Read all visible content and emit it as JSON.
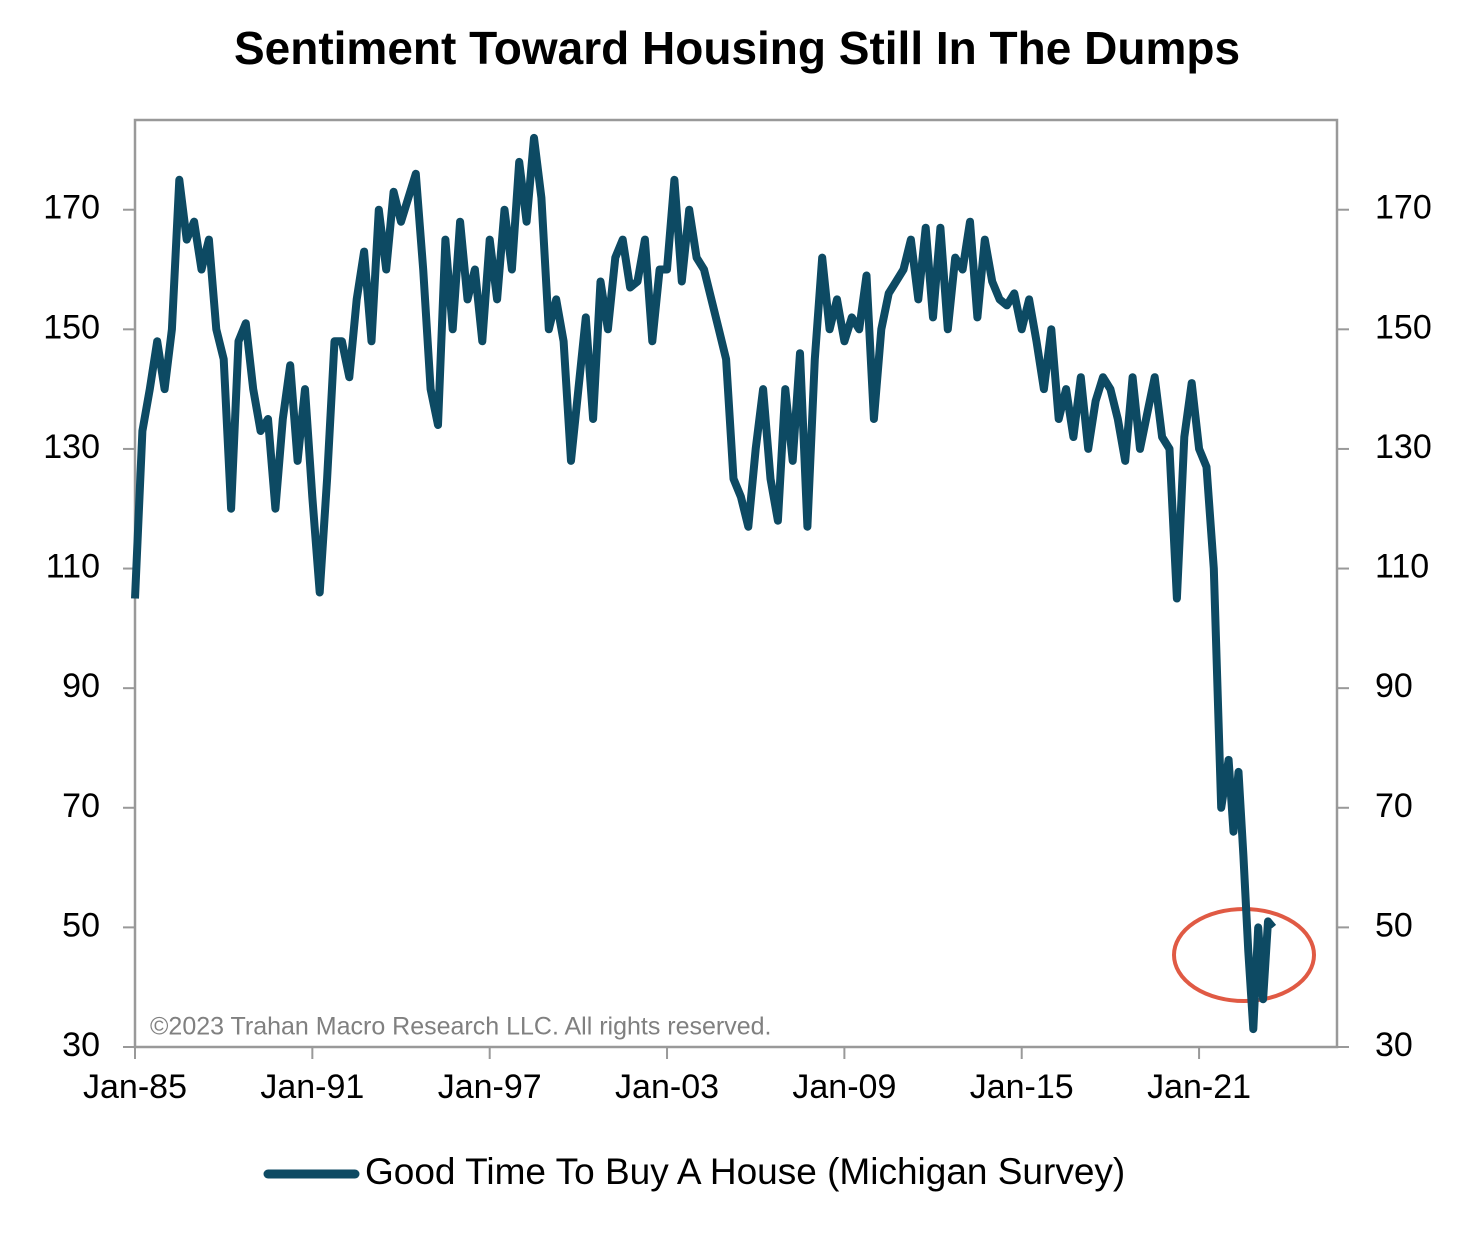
{
  "chart_data": {
    "type": "line",
    "title": "Sentiment Toward Housing Still In The Dumps",
    "annotation": "©2023 Trahan Macro Research LLC. All rights reserved.",
    "x": [
      "Jan-85",
      "Apr-85",
      "Jul-85",
      "Oct-85",
      "Jan-86",
      "Apr-86",
      "Jul-86",
      "Oct-86",
      "Jan-87",
      "Apr-87",
      "Jul-87",
      "Oct-87",
      "Jan-88",
      "Apr-88",
      "Jul-88",
      "Oct-88",
      "Jan-89",
      "Apr-89",
      "Jul-89",
      "Oct-89",
      "Jan-90",
      "Apr-90",
      "Jul-90",
      "Oct-90",
      "Jan-91",
      "Apr-91",
      "Jul-91",
      "Oct-91",
      "Jan-92",
      "Apr-92",
      "Jul-92",
      "Oct-92",
      "Jan-93",
      "Apr-93",
      "Jul-93",
      "Oct-93",
      "Jan-94",
      "Apr-94",
      "Jul-94",
      "Oct-94",
      "Jan-95",
      "Apr-95",
      "Jul-95",
      "Oct-95",
      "Jan-96",
      "Apr-96",
      "Jul-96",
      "Oct-96",
      "Jan-97",
      "Apr-97",
      "Jul-97",
      "Oct-97",
      "Jan-98",
      "Apr-98",
      "Jul-98",
      "Oct-98",
      "Jan-99",
      "Apr-99",
      "Jul-99",
      "Oct-99",
      "Jan-00",
      "Apr-00",
      "Jul-00",
      "Oct-00",
      "Jan-01",
      "Apr-01",
      "Jul-01",
      "Oct-01",
      "Jan-02",
      "Apr-02",
      "Jul-02",
      "Oct-02",
      "Jan-03",
      "Apr-03",
      "Jul-03",
      "Oct-03",
      "Jan-04",
      "Apr-04",
      "Jul-04",
      "Oct-04",
      "Jan-05",
      "Apr-05",
      "Jul-05",
      "Oct-05",
      "Jan-06",
      "Apr-06",
      "Jul-06",
      "Oct-06",
      "Jan-07",
      "Apr-07",
      "Jul-07",
      "Oct-07",
      "Jan-08",
      "Apr-08",
      "Jul-08",
      "Oct-08",
      "Jan-09",
      "Apr-09",
      "Jul-09",
      "Oct-09",
      "Jan-10",
      "Apr-10",
      "Jul-10",
      "Oct-10",
      "Jan-11",
      "Apr-11",
      "Jul-11",
      "Oct-11",
      "Jan-12",
      "Apr-12",
      "Jul-12",
      "Oct-12",
      "Jan-13",
      "Apr-13",
      "Jul-13",
      "Oct-13",
      "Jan-14",
      "Apr-14",
      "Jul-14",
      "Oct-14",
      "Jan-15",
      "Apr-15",
      "Jul-15",
      "Oct-15",
      "Jan-16",
      "Apr-16",
      "Jul-16",
      "Oct-16",
      "Jan-17",
      "Apr-17",
      "Jul-17",
      "Oct-17",
      "Jan-18",
      "Apr-18",
      "Jul-18",
      "Oct-18",
      "Jan-19",
      "Apr-19",
      "Jul-19",
      "Oct-19",
      "Jan-20",
      "Apr-20",
      "Jul-20",
      "Oct-20",
      "Jan-21",
      "Apr-21",
      "Jul-21",
      "Oct-21",
      "Jan-22",
      "Mar-22",
      "May-22",
      "Jul-22",
      "Sep-22",
      "Nov-22",
      "Jan-23",
      "Mar-23",
      "May-23",
      "Jul-23"
    ],
    "series": [
      {
        "name": "Good Time To Buy A House (Michigan Survey)",
        "color": "#0d4a63",
        "values": [
          105,
          133,
          140,
          148,
          140,
          150,
          175,
          165,
          168,
          160,
          165,
          150,
          145,
          120,
          148,
          151,
          140,
          133,
          135,
          120,
          135,
          144,
          128,
          140,
          122,
          106,
          125,
          148,
          148,
          142,
          155,
          163,
          148,
          170,
          160,
          173,
          168,
          172,
          176,
          160,
          140,
          134,
          165,
          150,
          168,
          155,
          160,
          148,
          165,
          155,
          170,
          160,
          178,
          168,
          182,
          172,
          150,
          155,
          148,
          128,
          140,
          152,
          135,
          158,
          150,
          162,
          165,
          157,
          158,
          165,
          148,
          160,
          160,
          175,
          158,
          170,
          162,
          160,
          155,
          150,
          145,
          125,
          122,
          117,
          130,
          140,
          125,
          118,
          140,
          128,
          146,
          117,
          145,
          162,
          150,
          155,
          148,
          152,
          150,
          159,
          135,
          150,
          156,
          158,
          160,
          165,
          155,
          167,
          152,
          167,
          150,
          162,
          160,
          168,
          152,
          165,
          158,
          155,
          154,
          156,
          150,
          155,
          148,
          140,
          150,
          135,
          140,
          132,
          142,
          130,
          138,
          142,
          140,
          135,
          128,
          142,
          130,
          136,
          142,
          132,
          130,
          105,
          132,
          141,
          130,
          127,
          110,
          70,
          78,
          66,
          76,
          62,
          46,
          33,
          50,
          38,
          51,
          50
        ]
      }
    ],
    "xlim": [
      "Jan-85",
      "Sep-25"
    ],
    "xticks": [
      "Jan-85",
      "Jan-91",
      "Jan-97",
      "Jan-03",
      "Jan-09",
      "Jan-15",
      "Jan-21"
    ],
    "ylim": [
      30,
      185
    ],
    "yticks": [
      30,
      50,
      70,
      90,
      110,
      130,
      150,
      170
    ],
    "y2lim": [
      30,
      185
    ],
    "y2ticks": [
      30,
      50,
      70,
      90,
      110,
      130,
      150,
      170
    ],
    "legend": "bottom"
  }
}
